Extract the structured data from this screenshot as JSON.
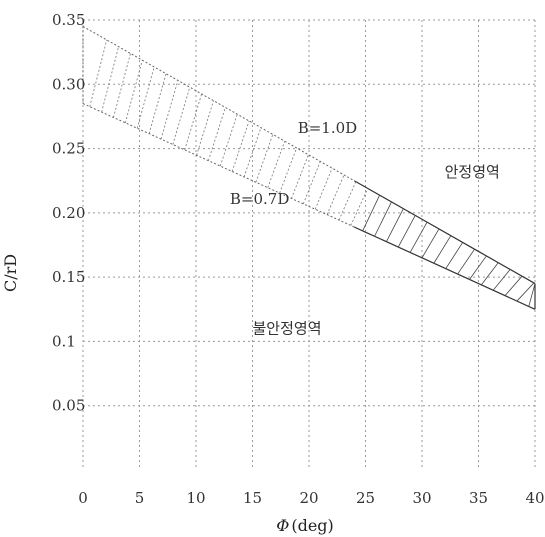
{
  "chart_data": {
    "type": "area",
    "xlabel_symbol": "Φ",
    "xlabel_unit": "(deg)",
    "ylabel": "C/rD",
    "xlim": [
      0,
      40
    ],
    "ylim": [
      0,
      0.35
    ],
    "x_ticks": [
      "0",
      "5",
      "10",
      "15",
      "20",
      "25",
      "30",
      "35",
      "40"
    ],
    "y_ticks": [
      "0.35",
      "0.30",
      "0.25",
      "0.20",
      "0.15",
      "0.1",
      "0.05"
    ],
    "y_tick_values": [
      0.35,
      0.3,
      0.25,
      0.2,
      0.15,
      0.1,
      0.05
    ],
    "grid": true,
    "series": [
      {
        "name": "B=1.0D",
        "x": [
          0,
          5,
          10,
          15,
          20,
          25,
          30,
          35,
          40
        ],
        "y": [
          0.345,
          0.32,
          0.295,
          0.27,
          0.245,
          0.22,
          0.195,
          0.17,
          0.145
        ]
      },
      {
        "name": "B=0.7D",
        "x": [
          0,
          5,
          10,
          15,
          20,
          25,
          30,
          35,
          40
        ],
        "y": [
          0.285,
          0.265,
          0.245,
          0.225,
          0.205,
          0.185,
          0.165,
          0.145,
          0.125
        ]
      }
    ],
    "annotations": [
      {
        "text": "B=1.0D",
        "x": 19,
        "y": 0.262
      },
      {
        "text": "B=0.7D",
        "x": 13,
        "y": 0.207
      },
      {
        "text": "안정영역",
        "x": 32,
        "y": 0.228
      },
      {
        "text": "불안정영역",
        "x": 15,
        "y": 0.106
      }
    ]
  }
}
